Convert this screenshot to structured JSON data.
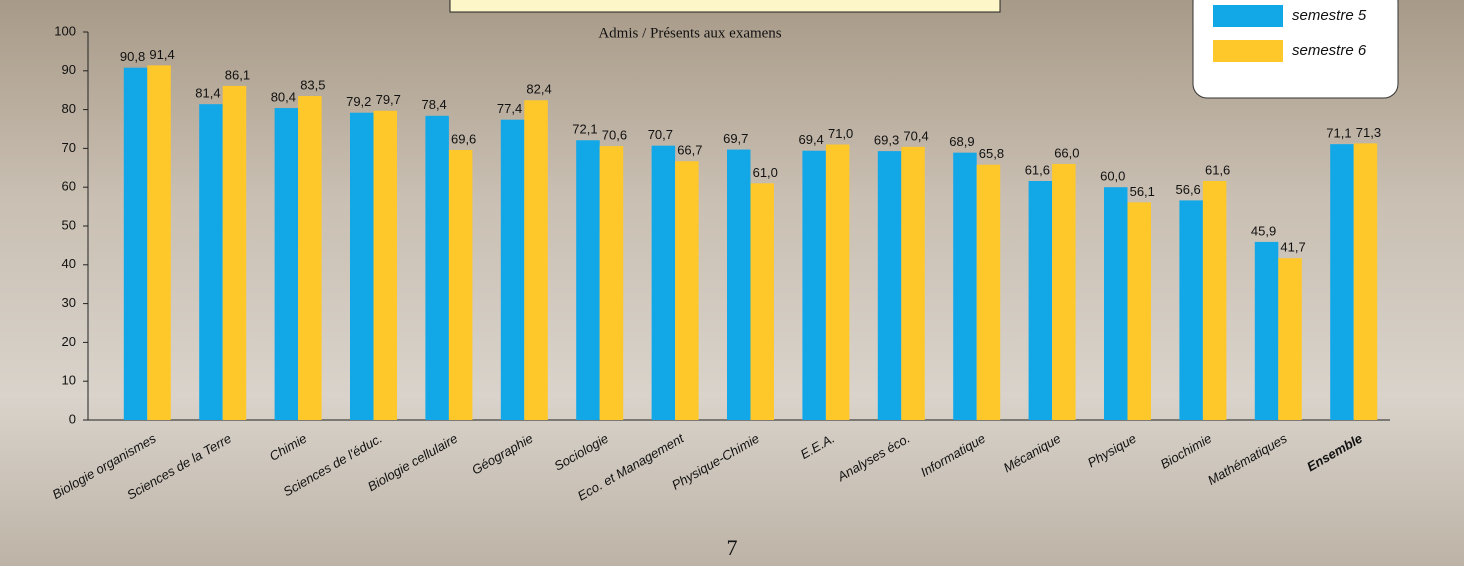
{
  "chart_data": {
    "type": "bar",
    "subtitle": "Admis / Présents aux examens",
    "page_number": "7",
    "categories": [
      "Biologie organismes",
      "Sciences de la Terre",
      "Chimie",
      "Sciences de l'éduc.",
      "Biologie cellulaire",
      "Géographie",
      "Sociologie",
      "Eco. et Management",
      "Physique-Chimie",
      "E.E.A.",
      "Analyses éco.",
      "Informatique",
      "Mécanique",
      "Physique",
      "Biochimie",
      "Mathématiques",
      "Ensemble"
    ],
    "series": [
      {
        "name": "semestre 5",
        "color": "#12a8e8",
        "values": [
          90.8,
          81.4,
          80.4,
          79.2,
          78.4,
          77.4,
          72.1,
          70.7,
          69.7,
          69.4,
          69.3,
          68.9,
          61.6,
          60.0,
          56.6,
          45.9,
          71.1
        ],
        "value_labels": [
          "90,8",
          "81,4",
          "80,4",
          "79,2",
          "78,4",
          "77,4",
          "72,1",
          "70,7",
          "69,7",
          "69,4",
          "69,3",
          "68,9",
          "61,6",
          "60,0",
          "56,6",
          "45,9",
          "71,1"
        ]
      },
      {
        "name": "semestre 6",
        "color": "#ffc82a",
        "values": [
          91.4,
          86.1,
          83.5,
          79.7,
          69.6,
          82.4,
          70.6,
          66.7,
          61.0,
          71.0,
          70.4,
          65.8,
          66.0,
          56.1,
          61.6,
          41.7,
          71.3
        ],
        "value_labels": [
          "91,4",
          "86,1",
          "83,5",
          "79,7",
          "69,6",
          "82,4",
          "70,6",
          "66,7",
          "61,0",
          "71,0",
          "70,4",
          "65,8",
          "66,0",
          "56,1",
          "61,6",
          "41,7",
          "71,3"
        ]
      }
    ],
    "ylim": [
      0,
      100
    ],
    "yticks": [
      0,
      10,
      20,
      30,
      40,
      50,
      60,
      70,
      80,
      90,
      100
    ]
  }
}
